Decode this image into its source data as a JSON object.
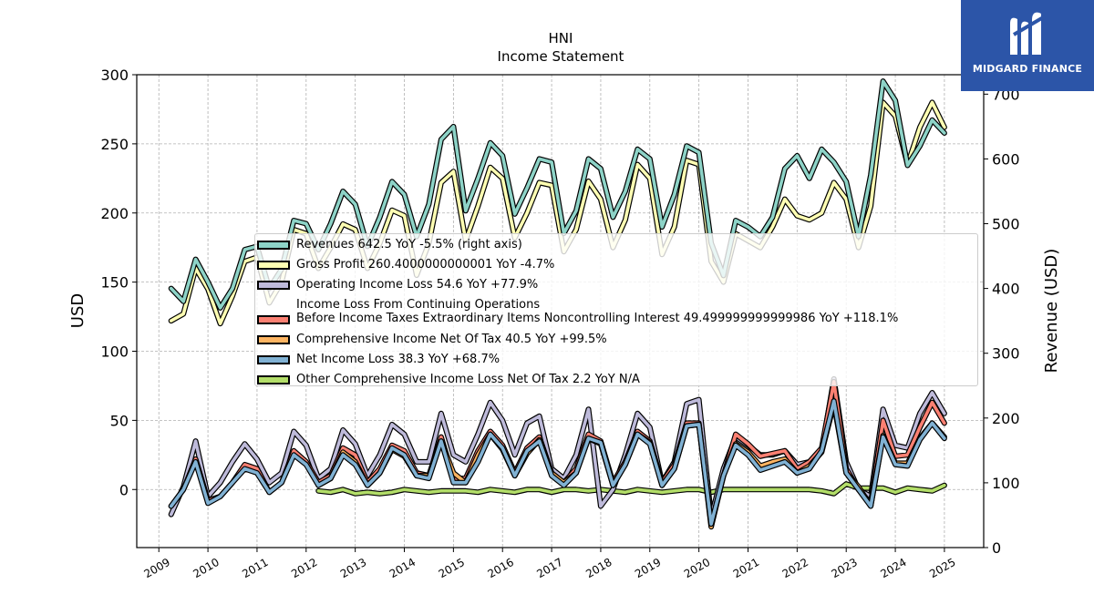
{
  "brand": {
    "name": "MIDGARD FINANCE",
    "logo_icon": "midgard-logo-icon"
  },
  "chart_data": {
    "type": "line",
    "title": "HNI",
    "subtitle": "Income Statement",
    "ylabel": "USD",
    "ylabel_right": "Revenue (USD)",
    "ylim": [
      -42,
      300
    ],
    "ylim_right": [
      0,
      730
    ],
    "yticks": [
      0,
      50,
      100,
      150,
      200,
      250,
      300
    ],
    "yticks_right": [
      0,
      100,
      200,
      300,
      400,
      500,
      600,
      700
    ],
    "xlim": [
      2008.55,
      2025.8
    ],
    "xticks": [
      "2009",
      "2010",
      "2011",
      "2012",
      "2013",
      "2014",
      "2015",
      "2016",
      "2017",
      "2018",
      "2019",
      "2020",
      "2021",
      "2022",
      "2023",
      "2024",
      "2025"
    ],
    "grid": true,
    "legend_position": "center",
    "series": [
      {
        "name": "Revenues  642.5 YoY -5.5% (right axis)",
        "legend_lines": [
          "Revenues  642.5 YoY -5.5% (right axis)"
        ],
        "color": "#8dd3c7",
        "axis": "right",
        "z": 6,
        "x": [
          2009.25,
          2009.5,
          2009.75,
          2010.0,
          2010.25,
          2010.5,
          2010.75,
          2011.0,
          2011.25,
          2011.5,
          2011.75,
          2012.0,
          2012.25,
          2012.5,
          2012.75,
          2013.0,
          2013.25,
          2013.5,
          2013.75,
          2014.0,
          2014.25,
          2014.5,
          2014.75,
          2015.0,
          2015.25,
          2015.5,
          2015.75,
          2016.0,
          2016.25,
          2016.5,
          2016.75,
          2017.0,
          2017.25,
          2017.5,
          2017.75,
          2018.0,
          2018.25,
          2018.5,
          2018.75,
          2019.0,
          2019.25,
          2019.5,
          2019.75,
          2020.0,
          2020.25,
          2020.5,
          2020.75,
          2021.0,
          2021.25,
          2021.5,
          2021.75,
          2022.0,
          2022.25,
          2022.5,
          2022.75,
          2023.0,
          2023.25,
          2023.5,
          2023.75,
          2024.0,
          2024.25,
          2024.5,
          2024.75,
          2025.0
        ],
        "values": [
          400,
          380,
          445,
          410,
          370,
          400,
          460,
          465,
          400,
          430,
          505,
          500,
          460,
          500,
          550,
          530,
          465,
          510,
          565,
          545,
          480,
          530,
          630,
          650,
          520,
          570,
          625,
          605,
          515,
          555,
          600,
          595,
          485,
          520,
          600,
          585,
          510,
          550,
          615,
          600,
          495,
          545,
          620,
          610,
          470,
          420,
          505,
          495,
          480,
          510,
          585,
          605,
          570,
          615,
          595,
          565,
          480,
          575,
          720,
          690,
          590,
          620,
          660,
          640
        ]
      },
      {
        "name": "Gross Profit  260.4000000000001 YoY -4.7%",
        "legend_lines": [
          "Gross Profit  260.4000000000001 YoY -4.7%"
        ],
        "color": "#ffffb3",
        "axis": "left",
        "z": 5,
        "x": [
          2009.25,
          2009.5,
          2009.75,
          2010.0,
          2010.25,
          2010.5,
          2010.75,
          2011.0,
          2011.25,
          2011.5,
          2011.75,
          2012.0,
          2012.25,
          2012.5,
          2012.75,
          2013.0,
          2013.25,
          2013.5,
          2013.75,
          2014.0,
          2014.25,
          2014.5,
          2014.75,
          2015.0,
          2015.25,
          2015.5,
          2015.75,
          2016.0,
          2016.25,
          2016.5,
          2016.75,
          2017.0,
          2017.25,
          2017.5,
          2017.75,
          2018.0,
          2018.25,
          2018.5,
          2018.75,
          2019.0,
          2019.25,
          2019.5,
          2019.75,
          2020.0,
          2020.25,
          2020.5,
          2020.75,
          2021.0,
          2021.25,
          2021.5,
          2021.75,
          2022.0,
          2022.25,
          2022.5,
          2022.75,
          2023.0,
          2023.25,
          2023.5,
          2023.75,
          2024.0,
          2024.25,
          2024.5,
          2024.75,
          2025.0
        ],
        "values": [
          122,
          127,
          160,
          145,
          120,
          140,
          165,
          168,
          135,
          150,
          188,
          185,
          160,
          175,
          192,
          188,
          160,
          178,
          202,
          198,
          155,
          178,
          222,
          230,
          180,
          205,
          233,
          225,
          182,
          200,
          222,
          220,
          172,
          188,
          223,
          210,
          175,
          195,
          235,
          225,
          170,
          190,
          238,
          235,
          165,
          150,
          185,
          180,
          175,
          190,
          210,
          198,
          195,
          200,
          222,
          210,
          175,
          205,
          280,
          270,
          235,
          262,
          280,
          262
        ]
      },
      {
        "name": "Operating Income Loss  54.6 YoY +77.9%",
        "legend_lines": [
          "Operating Income Loss  54.6 YoY +77.9%"
        ],
        "color": "#bebada",
        "axis": "left",
        "z": 1,
        "x": [
          2009.25,
          2009.5,
          2009.75,
          2010.0,
          2010.25,
          2010.5,
          2010.75,
          2011.0,
          2011.25,
          2011.5,
          2011.75,
          2012.0,
          2012.25,
          2012.5,
          2012.75,
          2013.0,
          2013.25,
          2013.5,
          2013.75,
          2014.0,
          2014.25,
          2014.5,
          2014.75,
          2015.0,
          2015.25,
          2015.5,
          2015.75,
          2016.0,
          2016.25,
          2016.5,
          2016.75,
          2017.0,
          2017.25,
          2017.5,
          2017.75,
          2018.0,
          2018.25,
          2018.5,
          2018.75,
          2019.0,
          2019.25,
          2019.5,
          2019.75,
          2020.0,
          2020.25,
          2020.5,
          2020.75,
          2021.0,
          2021.25,
          2021.5,
          2021.75,
          2022.0,
          2022.25,
          2022.5,
          2022.75,
          2023.0,
          2023.25,
          2023.5,
          2023.75,
          2024.0,
          2024.25,
          2024.5,
          2024.75,
          2025.0
        ],
        "values": [
          -18,
          2,
          35,
          -5,
          5,
          20,
          33,
          22,
          5,
          12,
          42,
          32,
          8,
          15,
          43,
          33,
          10,
          25,
          47,
          40,
          20,
          20,
          55,
          25,
          20,
          40,
          63,
          50,
          25,
          48,
          53,
          15,
          8,
          25,
          58,
          -12,
          0,
          25,
          55,
          45,
          5,
          20,
          62,
          65,
          -20,
          15,
          38,
          32,
          25,
          25,
          28,
          18,
          20,
          28,
          80,
          20,
          0,
          -5,
          58,
          32,
          30,
          55,
          70,
          55
        ]
      },
      {
        "name": "Income Loss From Continuing Operations Before Income Taxes Extraordinary Items Noncontrolling Interest  49.499999999999986 YoY +118.1%",
        "legend_lines": [
          "Income Loss From Continuing Operations",
          "Before Income Taxes Extraordinary Items Noncontrolling Interest  49.499999999999986 YoY +118.1%"
        ],
        "color": "#fb8072",
        "axis": "left",
        "z": 2,
        "x": [
          2009.25,
          2009.5,
          2009.75,
          2010.0,
          2010.25,
          2010.5,
          2010.75,
          2011.0,
          2011.25,
          2011.5,
          2011.75,
          2012.0,
          2012.25,
          2012.5,
          2012.75,
          2013.0,
          2013.25,
          2013.5,
          2013.75,
          2014.0,
          2014.25,
          2014.5,
          2014.75,
          2015.0,
          2015.25,
          2015.5,
          2015.75,
          2016.0,
          2016.25,
          2016.5,
          2016.75,
          2017.0,
          2017.25,
          2017.5,
          2017.75,
          2018.0,
          2018.25,
          2018.5,
          2018.75,
          2019.0,
          2019.25,
          2019.5,
          2019.75,
          2020.0,
          2020.25,
          2020.5,
          2020.75,
          2021.0,
          2021.25,
          2021.5,
          2021.75,
          2022.0,
          2022.25,
          2022.5,
          2022.75,
          2023.0,
          2023.25,
          2023.5,
          2023.75,
          2024.0,
          2024.25,
          2024.5,
          2024.75,
          2025.0
        ],
        "values": [
          -12,
          0,
          22,
          -8,
          -5,
          5,
          18,
          15,
          -2,
          5,
          28,
          20,
          5,
          10,
          30,
          25,
          5,
          15,
          32,
          28,
          12,
          10,
          38,
          8,
          8,
          28,
          42,
          32,
          12,
          30,
          38,
          12,
          5,
          15,
          40,
          35,
          5,
          20,
          42,
          35,
          5,
          18,
          48,
          48,
          -25,
          10,
          40,
          33,
          24,
          26,
          28,
          15,
          20,
          30,
          78,
          15,
          0,
          -10,
          50,
          24,
          25,
          45,
          63,
          48
        ]
      },
      {
        "name": "Comprehensive Income Net Of Tax  40.5 YoY +99.5%",
        "legend_lines": [
          "Comprehensive Income Net Of Tax  40.5 YoY +99.5%"
        ],
        "color": "#fdb462",
        "axis": "left",
        "z": 3,
        "x": [
          2012.25,
          2012.5,
          2012.75,
          2013.0,
          2013.25,
          2013.5,
          2013.75,
          2014.0,
          2014.25,
          2014.5,
          2014.75,
          2015.0,
          2015.25,
          2015.5,
          2015.75,
          2016.0,
          2016.25,
          2016.5,
          2016.75,
          2017.0,
          2017.25,
          2017.5,
          2017.75,
          2018.0,
          2018.25,
          2018.5,
          2018.75,
          2019.0,
          2019.25,
          2019.5,
          2019.75,
          2020.0,
          2020.25,
          2020.5,
          2020.75,
          2021.0,
          2021.25,
          2021.5,
          2021.75,
          2022.0,
          2022.25,
          2022.5,
          2022.75,
          2023.0,
          2023.25,
          2023.5,
          2023.75,
          2024.0,
          2024.25,
          2024.5,
          2024.75,
          2025.0
        ],
        "values": [
          3,
          8,
          27,
          20,
          3,
          12,
          29,
          24,
          10,
          10,
          35,
          12,
          5,
          25,
          40,
          29,
          10,
          26,
          36,
          12,
          5,
          12,
          37,
          33,
          3,
          18,
          40,
          34,
          3,
          15,
          46,
          47,
          -27,
          10,
          33,
          27,
          17,
          20,
          22,
          12,
          17,
          27,
          62,
          12,
          2,
          -12,
          39,
          19,
          19,
          37,
          48,
          38
        ]
      },
      {
        "name": "Net Income Loss  38.3 YoY +68.7%",
        "legend_lines": [
          "Net Income Loss  38.3 YoY +68.7%"
        ],
        "color": "#80b1d3",
        "axis": "left",
        "z": 4,
        "x": [
          2009.25,
          2009.5,
          2009.75,
          2010.0,
          2010.25,
          2010.5,
          2010.75,
          2011.0,
          2011.25,
          2011.5,
          2011.75,
          2012.0,
          2012.25,
          2012.5,
          2012.75,
          2013.0,
          2013.25,
          2013.5,
          2013.75,
          2014.0,
          2014.25,
          2014.5,
          2014.75,
          2015.0,
          2015.25,
          2015.5,
          2015.75,
          2016.0,
          2016.25,
          2016.5,
          2016.75,
          2017.0,
          2017.25,
          2017.5,
          2017.75,
          2018.0,
          2018.25,
          2018.5,
          2018.75,
          2019.0,
          2019.25,
          2019.5,
          2019.75,
          2020.0,
          2020.25,
          2020.5,
          2020.75,
          2021.0,
          2021.25,
          2021.5,
          2021.75,
          2022.0,
          2022.25,
          2022.5,
          2022.75,
          2023.0,
          2023.25,
          2023.5,
          2023.75,
          2024.0,
          2024.25,
          2024.5,
          2024.75,
          2025.0
        ],
        "values": [
          -12,
          0,
          20,
          -10,
          -5,
          5,
          15,
          12,
          -2,
          5,
          25,
          18,
          3,
          8,
          25,
          18,
          3,
          12,
          30,
          25,
          10,
          8,
          35,
          5,
          5,
          20,
          40,
          30,
          10,
          28,
          35,
          10,
          3,
          12,
          37,
          34,
          3,
          18,
          40,
          33,
          3,
          15,
          46,
          47,
          -25,
          10,
          32,
          25,
          14,
          17,
          20,
          12,
          15,
          28,
          64,
          12,
          0,
          -12,
          38,
          18,
          17,
          36,
          48,
          37
        ]
      },
      {
        "name": "Other Comprehensive Income Loss Net Of Tax  2.2 YoY N/A",
        "legend_lines": [
          "Other Comprehensive Income Loss Net Of Tax  2.2 YoY N/A"
        ],
        "color": "#b3de69",
        "axis": "left",
        "z": 0,
        "x": [
          2012.25,
          2012.5,
          2012.75,
          2013.0,
          2013.25,
          2013.5,
          2013.75,
          2014.0,
          2014.25,
          2014.5,
          2014.75,
          2015.0,
          2015.25,
          2015.5,
          2015.75,
          2016.0,
          2016.25,
          2016.5,
          2016.75,
          2017.0,
          2017.25,
          2017.5,
          2017.75,
          2018.0,
          2018.25,
          2018.5,
          2018.75,
          2019.0,
          2019.25,
          2019.5,
          2019.75,
          2020.0,
          2020.25,
          2020.5,
          2020.75,
          2021.0,
          2021.25,
          2021.5,
          2021.75,
          2022.0,
          2022.25,
          2022.5,
          2022.75,
          2023.0,
          2023.25,
          2023.5,
          2023.75,
          2024.0,
          2024.25,
          2024.5,
          2024.75,
          2025.0
        ],
        "values": [
          -1,
          -2,
          0,
          -3,
          -2,
          -3,
          -2,
          0,
          -1,
          -2,
          -1,
          -1,
          -1,
          -2,
          0,
          -1,
          -2,
          0,
          0,
          -2,
          0,
          0,
          -1,
          0,
          -1,
          -2,
          0,
          -1,
          -2,
          -1,
          0,
          0,
          -2,
          0,
          0,
          0,
          0,
          0,
          0,
          0,
          0,
          -1,
          -3,
          4,
          1,
          1,
          1,
          -2,
          1,
          0,
          -1,
          3
        ]
      }
    ]
  }
}
